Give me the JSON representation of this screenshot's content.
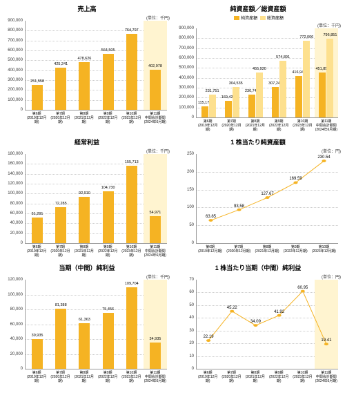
{
  "colors": {
    "bar1": "#f5b323",
    "bar2": "#fde08e",
    "line": "#f5b323",
    "highlight": "#fff4d0"
  },
  "xlabels": [
    {
      "l1": "第6期",
      "l2": "(2019年12月期)"
    },
    {
      "l1": "第7期",
      "l2": "(2020年12月期)"
    },
    {
      "l1": "第8期",
      "l2": "(2021年12月期)"
    },
    {
      "l1": "第9期",
      "l2": "(2022年12月期)"
    },
    {
      "l1": "第10期",
      "l2": "(2023年12月期)"
    },
    {
      "l1": "第11期",
      "l2": "中間会計期間",
      "l3": "(2024年6月期)"
    }
  ],
  "xlabels5": [
    {
      "l1": "第6期",
      "l2": "(2019年12月期)"
    },
    {
      "l1": "第7期",
      "l2": "(2020年12月期)"
    },
    {
      "l1": "第8期",
      "l2": "(2021年12月期)"
    },
    {
      "l1": "第9期",
      "l2": "(2022年12月期)"
    },
    {
      "l1": "第10期",
      "l2": "(2023年12月期)"
    }
  ],
  "panels": [
    {
      "title": "売上高",
      "unit": "(単位：千円)",
      "type": "bar",
      "ymax": 900000,
      "ystep": 100000,
      "highlightLast": true,
      "series": [
        {
          "color": "#f5b323",
          "data": [
            251558,
            425241,
            478626,
            564505,
            764797,
            402978
          ]
        }
      ],
      "labels": [
        "251,558",
        "425,241",
        "478,626",
        "564,505",
        "764,797",
        "402,978"
      ]
    },
    {
      "title": "純資産額／総資産額",
      "unit": "(単位：千円)",
      "type": "bar2",
      "ymax": 900000,
      "ystep": 100000,
      "highlightLast": true,
      "legend": [
        "純資産額",
        "総資産額"
      ],
      "series": [
        {
          "color": "#f5b323",
          "data": [
            115174,
            169435,
            230748,
            307242,
            416948,
            451859
          ]
        },
        {
          "color": "#fde08e",
          "data": [
            231751,
            304535,
            455920,
            574891,
            772006,
            796851
          ]
        }
      ],
      "labels2": [
        [
          "115,174",
          "231,751"
        ],
        [
          "169,435",
          "304,535"
        ],
        [
          "230,748",
          "455,920"
        ],
        [
          "307,242",
          "574,891"
        ],
        [
          "416,948",
          "772,006"
        ],
        [
          "451,859",
          "796,851"
        ]
      ]
    },
    {
      "title": "経常利益",
      "unit": "(単位：千円)",
      "type": "bar",
      "ymax": 180000,
      "ystep": 20000,
      "highlightLast": true,
      "series": [
        {
          "color": "#f5b323",
          "data": [
            51291,
            72285,
            92910,
            104730,
            155713,
            54971
          ]
        }
      ],
      "labels": [
        "51,291",
        "72,285",
        "92,910",
        "104,730",
        "155,713",
        "54,971"
      ]
    },
    {
      "title": "1 株当たり純資産額",
      "unit": "(単位：円)",
      "type": "line",
      "ymax": 250,
      "ystep": 50,
      "highlightLast": false,
      "xcount": 5,
      "series": [
        {
          "color": "#f5b323",
          "data": [
            63.85,
            93.58,
            127.67,
            169.59,
            230.54
          ]
        }
      ],
      "labels": [
        "63.85",
        "93.58",
        "127.67",
        "169.59",
        "230.54"
      ]
    },
    {
      "title": "当期（中間）純利益",
      "unit": "(単位：千円)",
      "type": "bar",
      "ymax": 120000,
      "ystep": 20000,
      "highlightLast": true,
      "series": [
        {
          "color": "#f5b323",
          "data": [
            39935,
            81388,
            61363,
            75456,
            109704,
            34935
          ]
        }
      ],
      "labels": [
        "39,935",
        "81,388",
        "61,363",
        "75,456",
        "109,704",
        "34,935"
      ]
    },
    {
      "title": "1 株当たり当期（中間）純利益",
      "unit": "(単位：円)",
      "type": "line",
      "ymax": 70,
      "ystep": 10,
      "highlightLast": true,
      "xcount": 6,
      "series": [
        {
          "color": "#f5b323",
          "data": [
            22.19,
            45.22,
            34.09,
            41.92,
            60.95,
            19.41
          ]
        }
      ],
      "labels": [
        "22.19",
        "45.22",
        "34.09",
        "41.92",
        "60.95",
        "19.41"
      ]
    }
  ]
}
